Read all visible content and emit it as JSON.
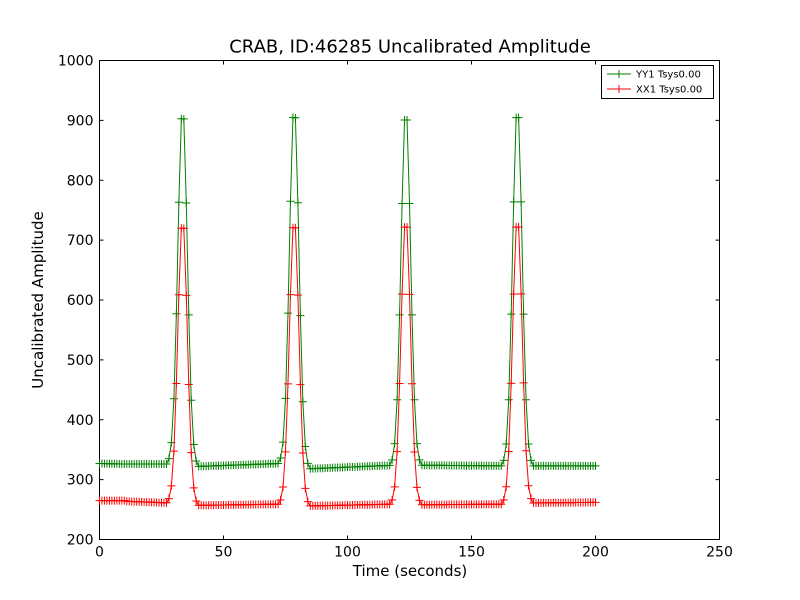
{
  "chart_data": {
    "type": "line",
    "title": "CRAB, ID:46285 Uncalibrated Amplitude",
    "xlabel": "Time (seconds)",
    "ylabel": "Uncalibrated Amplitude",
    "xlim": [
      0,
      250
    ],
    "ylim": [
      200,
      1000
    ],
    "xticks": [
      0,
      50,
      100,
      150,
      200,
      250
    ],
    "yticks": [
      200,
      300,
      400,
      500,
      600,
      700,
      800,
      900,
      1000
    ],
    "grid": false,
    "legend_position": "top-right",
    "marker": "+",
    "sample_interval_seconds": 1,
    "series": [
      {
        "name": "YY1 Tsys0.00",
        "color": "#008000",
        "x_start": 0,
        "x_end": 200,
        "baseline_segments": [
          {
            "from": 0,
            "to": 10,
            "start": 327,
            "end": 326
          },
          {
            "from": 10,
            "to": 28,
            "start": 326,
            "end": 326
          },
          {
            "from": 39,
            "to": 73,
            "start": 322,
            "end": 327
          },
          {
            "from": 84,
            "to": 118,
            "start": 318,
            "end": 324
          },
          {
            "from": 129,
            "to": 163,
            "start": 324,
            "end": 323
          },
          {
            "from": 174,
            "to": 200,
            "start": 323,
            "end": 323
          }
        ],
        "peaks": [
          {
            "center": 33.5,
            "height": 923,
            "width": 1.9
          },
          {
            "center": 78.5,
            "height": 925,
            "width": 1.9
          },
          {
            "center": 123.5,
            "height": 921,
            "width": 1.9
          },
          {
            "center": 168.5,
            "height": 925,
            "width": 1.9
          }
        ]
      },
      {
        "name": "XX1 Tsys0.00",
        "color": "#ff0000",
        "x_start": 0,
        "x_end": 200,
        "baseline_segments": [
          {
            "from": 0,
            "to": 10,
            "start": 265,
            "end": 265
          },
          {
            "from": 10,
            "to": 28,
            "start": 264,
            "end": 261
          },
          {
            "from": 39,
            "to": 73,
            "start": 257,
            "end": 259
          },
          {
            "from": 84,
            "to": 118,
            "start": 256,
            "end": 259
          },
          {
            "from": 129,
            "to": 163,
            "start": 258,
            "end": 259
          },
          {
            "from": 174,
            "to": 200,
            "start": 261,
            "end": 262
          }
        ],
        "peaks": [
          {
            "center": 33.5,
            "height": 736,
            "width": 1.9
          },
          {
            "center": 78.5,
            "height": 737,
            "width": 1.9
          },
          {
            "center": 123.5,
            "height": 738,
            "width": 1.9
          },
          {
            "center": 168.5,
            "height": 738,
            "width": 1.9
          }
        ]
      }
    ]
  }
}
